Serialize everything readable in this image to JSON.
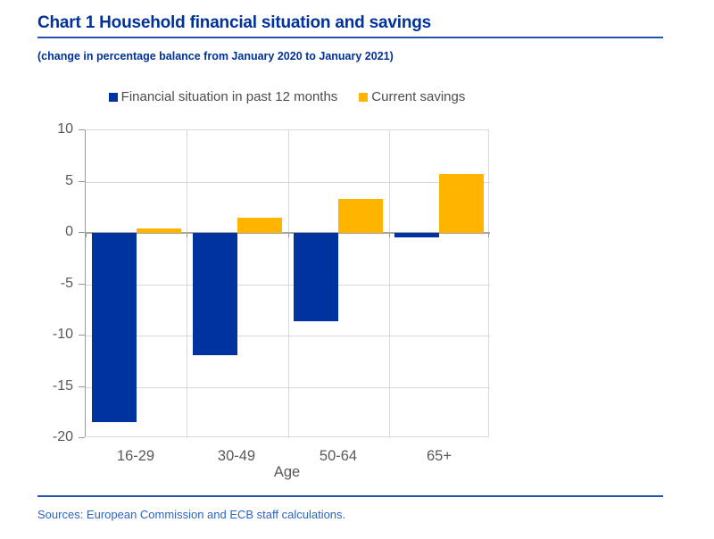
{
  "header": {
    "title": "Chart 1 Household financial situation and savings",
    "subtitle": "(change in percentage balance from January 2020 to January 2021)"
  },
  "footer": {
    "sources": "Sources: European Commission and ECB staff calculations."
  },
  "colors": {
    "title_blue": "#003299",
    "rule_blue": "#2353b5",
    "sources_blue": "#2a65c2",
    "axis_text_gray": "#595959",
    "legend_text_gray": "#4d4d4d",
    "gridline_gray": "#d9d9d9",
    "zero_line_gray": "#a6a6a6",
    "series_blue": "#0033a0",
    "series_orange": "#ffb400"
  },
  "chart_data": {
    "type": "bar",
    "title": "Chart 1 Household financial situation and savings",
    "subtitle": "(change in percentage balance from January 2020 to January 2021)",
    "categories": [
      "16-29",
      "30-49",
      "50-64",
      "65+"
    ],
    "series": [
      {
        "name": "Financial situation in past 12 months",
        "color": "#0033a0",
        "values": [
          -18.4,
          -11.9,
          -8.6,
          -0.4
        ]
      },
      {
        "name": "Current savings",
        "color": "#ffb400",
        "values": [
          0.4,
          1.5,
          3.3,
          5.7
        ]
      }
    ],
    "xlabel": "Age",
    "ylabel": "",
    "ylim": [
      -20,
      10
    ],
    "ytick_step": 5,
    "yticks": [
      10,
      5,
      0,
      -5,
      -10,
      -15,
      -20
    ],
    "grid": true,
    "legend_position": "top",
    "unit": "percentage balance change"
  }
}
